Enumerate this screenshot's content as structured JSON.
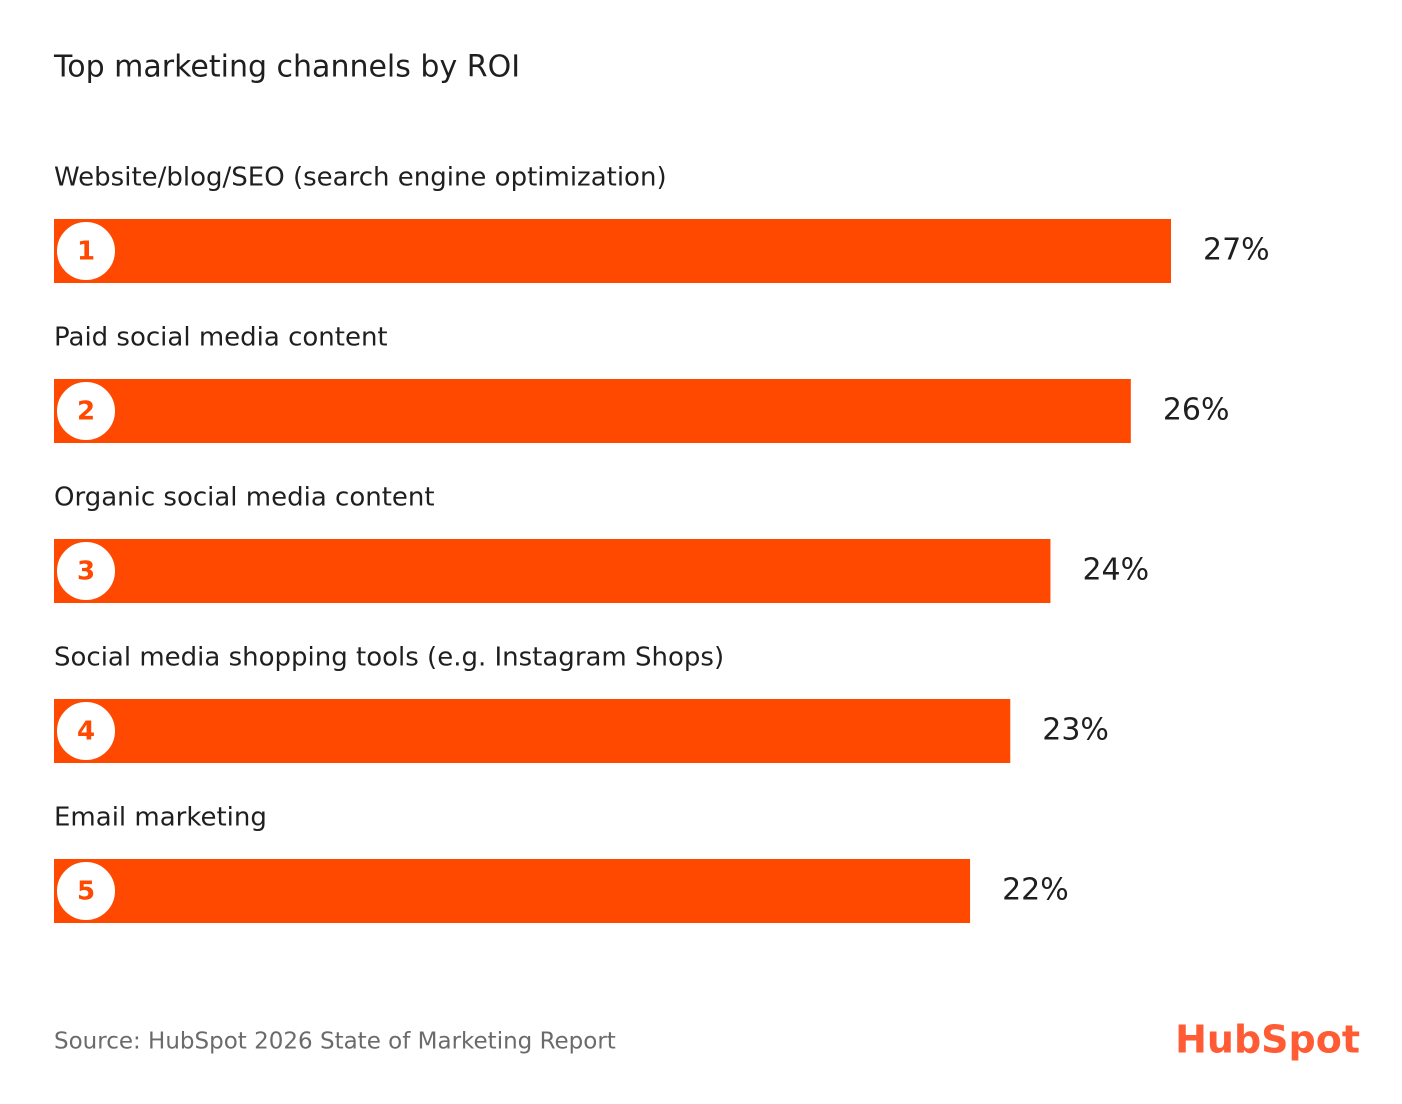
{
  "chart_data": {
    "type": "bar",
    "orientation": "horizontal",
    "title": "Top marketing channels by ROI",
    "categories": [
      "Website/blog/SEO (search engine optimization)",
      "Paid social media content",
      "Organic social media content",
      "Social media shopping tools (e.g. Instagram Shops)",
      "Email marketing"
    ],
    "ranks": [
      1,
      2,
      3,
      4,
      5
    ],
    "values": [
      27,
      26,
      24,
      23,
      22
    ],
    "value_labels": [
      "27%",
      "26%",
      "24%",
      "23%",
      "22%"
    ],
    "color": "#ff4800",
    "source": "Source: HubSpot 2026 State of Marketing Report",
    "logo": "HubSpot"
  }
}
